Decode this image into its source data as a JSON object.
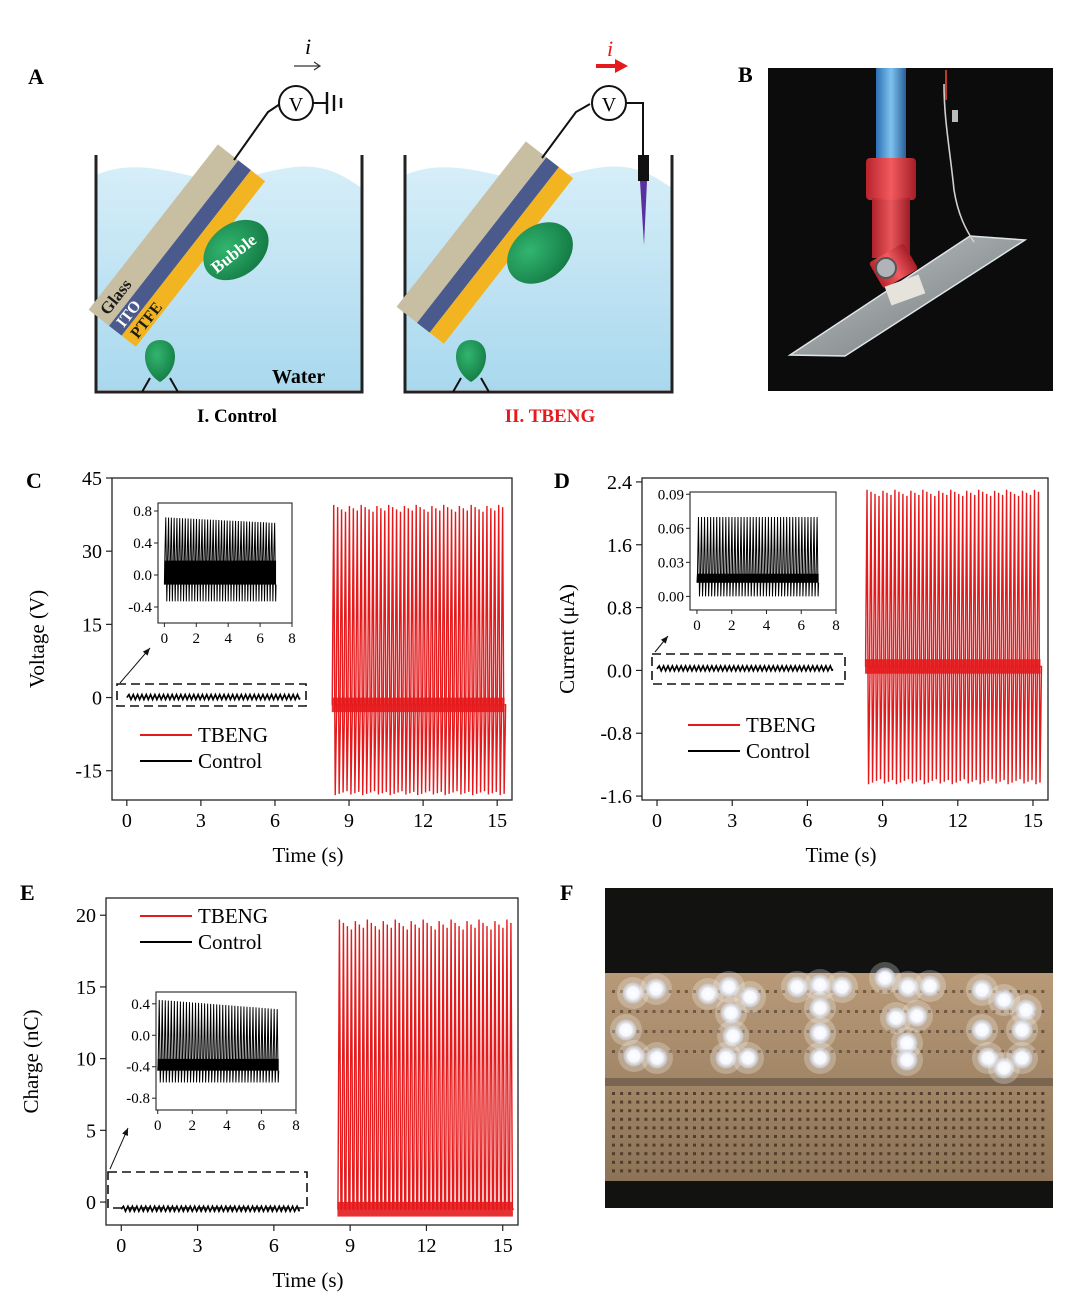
{
  "panels": {
    "A": {
      "letter": "A",
      "current_symbol": "i",
      "voltmeter": "V",
      "layers": [
        "Glass",
        "ITO",
        "PTFE"
      ],
      "bubble_label": "Bubble",
      "water_label": "Water",
      "left_caption": "I. Control",
      "right_caption": "II. TBENG"
    },
    "B": {
      "letter": "B"
    },
    "F": {
      "letter": "F"
    }
  },
  "colors": {
    "tbeng": "#e41a1c",
    "control": "#000000",
    "water": "#bfe3f2",
    "glass": "#c8bfa3",
    "ito": "#4b5a8c",
    "ptfe": "#f2b420",
    "bubble": "#1f9a57",
    "caption_red": "#e41a1c"
  },
  "chart_data": [
    {
      "panel": "C",
      "type": "line",
      "xlabel": "Time (s)",
      "ylabel": "Voltage (V)",
      "xlim": [
        -0.6,
        15.6
      ],
      "ylim": [
        -21,
        45
      ],
      "xticks": [
        0,
        3,
        6,
        9,
        12,
        15
      ],
      "yticks": [
        -15,
        0,
        15,
        30,
        45
      ],
      "ytick_labels": [
        "-15",
        "0",
        "15",
        "30",
        "45"
      ],
      "legend_position": "lower-left",
      "series": [
        {
          "name": "TBENG",
          "color": "#e41a1c",
          "t_start": 8.3,
          "t_end": 15.3,
          "baseline": -1.5,
          "peaks_high": 39.5,
          "peaks_low": -20,
          "n_pulses": 44
        },
        {
          "name": "Control",
          "color": "#000000",
          "t_start": 0,
          "t_end": 7,
          "baseline": 0,
          "amplitude": 0.8
        }
      ],
      "inset": {
        "xlim": [
          -0.4,
          8
        ],
        "ylim": [
          -0.6,
          0.9
        ],
        "xticks": [
          0,
          2,
          4,
          6,
          8
        ],
        "yticks": [
          -0.4,
          0.0,
          0.4,
          0.8
        ],
        "ytick_labels": [
          "-0.4",
          "0.0",
          "0.4",
          "0.8"
        ],
        "signal": {
          "t_start": 0,
          "t_end": 7,
          "high_start": 0.72,
          "high_end": 0.65,
          "low": -0.33,
          "band": [
            -0.12,
            0.18
          ],
          "n_pulses": 40
        }
      }
    },
    {
      "panel": "D",
      "type": "line",
      "xlabel": "Time (s)",
      "ylabel": "Current (μA)",
      "xlim": [
        -0.6,
        15.6
      ],
      "ylim": [
        -1.65,
        2.45
      ],
      "xticks": [
        0,
        3,
        6,
        9,
        12,
        15
      ],
      "yticks": [
        -1.6,
        -0.8,
        0.0,
        0.8,
        1.6,
        2.4
      ],
      "ytick_labels": [
        "-1.6",
        "-0.8",
        "0.0",
        "0.8",
        "1.6",
        "2.4"
      ],
      "legend_position": "lower-left",
      "series": [
        {
          "name": "TBENG",
          "color": "#e41a1c",
          "t_start": 8.3,
          "t_end": 15.3,
          "baseline": 0.05,
          "peaks_high": 2.3,
          "peaks_low": -1.45,
          "n_pulses": 44
        },
        {
          "name": "Control",
          "color": "#000000",
          "t_start": 0,
          "t_end": 7,
          "baseline": 0.02,
          "amplitude": 0.07
        }
      ],
      "inset": {
        "xlim": [
          -0.4,
          8
        ],
        "ylim": [
          -0.012,
          0.092
        ],
        "xticks": [
          0,
          2,
          4,
          6,
          8
        ],
        "yticks": [
          0.0,
          0.03,
          0.06,
          0.09
        ],
        "ytick_labels": [
          "0.00",
          "0.03",
          "0.06",
          "0.09"
        ],
        "signal": {
          "t_start": 0,
          "t_end": 7,
          "high_start": 0.07,
          "high_end": 0.07,
          "low": 0.0,
          "band": [
            0.012,
            0.02
          ],
          "n_pulses": 40
        }
      }
    },
    {
      "panel": "E",
      "type": "line",
      "xlabel": "Time (s)",
      "ylabel": "Charge (nC)",
      "xlim": [
        -0.6,
        15.6
      ],
      "ylim": [
        -1.6,
        21.2
      ],
      "xticks": [
        0,
        3,
        6,
        9,
        12,
        15
      ],
      "yticks": [
        0,
        5,
        10,
        15,
        20
      ],
      "ytick_labels": [
        "0",
        "5",
        "10",
        "15",
        "20"
      ],
      "legend_position": "upper-left",
      "series": [
        {
          "name": "TBENG",
          "color": "#e41a1c",
          "t_start": 8.5,
          "t_end": 15.4,
          "baseline": -0.5,
          "peaks_high": 19.7,
          "peaks_low": -0.5,
          "n_pulses": 44
        },
        {
          "name": "Control",
          "color": "#000000",
          "t_start": 0,
          "t_end": 7,
          "baseline": -0.5,
          "amplitude": 0.45
        }
      ],
      "inset": {
        "xlim": [
          -0.1,
          8
        ],
        "ylim": [
          -0.95,
          0.55
        ],
        "xticks": [
          0,
          2,
          4,
          6,
          8
        ],
        "yticks": [
          -0.8,
          -0.4,
          0.0,
          0.4
        ],
        "ytick_labels": [
          "-0.8",
          "-0.4",
          "0.0",
          "0.4"
        ],
        "signal": {
          "t_start": 0,
          "t_end": 7,
          "high_start": 0.45,
          "high_end": 0.33,
          "low": -0.6,
          "band": [
            -0.45,
            -0.3
          ],
          "n_pulses": 40
        }
      }
    }
  ]
}
